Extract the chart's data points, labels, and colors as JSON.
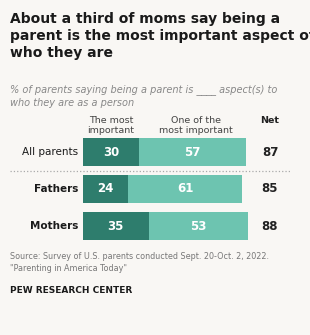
{
  "title": "About a third of moms say being a\nparent is the most important aspect of\nwho they are",
  "subtitle": "% of parents saying being a parent is ____ aspect(s) to\nwho they are as a person",
  "categories": [
    "All parents",
    "Fathers",
    "Mothers"
  ],
  "most_important": [
    30,
    24,
    35
  ],
  "one_of_most": [
    57,
    61,
    53
  ],
  "net": [
    87,
    85,
    88
  ],
  "color_most": "#2e7d6d",
  "color_one_of": "#6dc4b0",
  "col1_label": "The most\nimportant",
  "col2_label": "One of the\nmost important",
  "net_label": "Net",
  "source": "Source: Survey of U.S. parents conducted Sept. 20-Oct. 2, 2022.\n\"Parenting in America Today\"",
  "footer": "PEW RESEARCH CENTER",
  "bg_color": "#f9f7f4"
}
